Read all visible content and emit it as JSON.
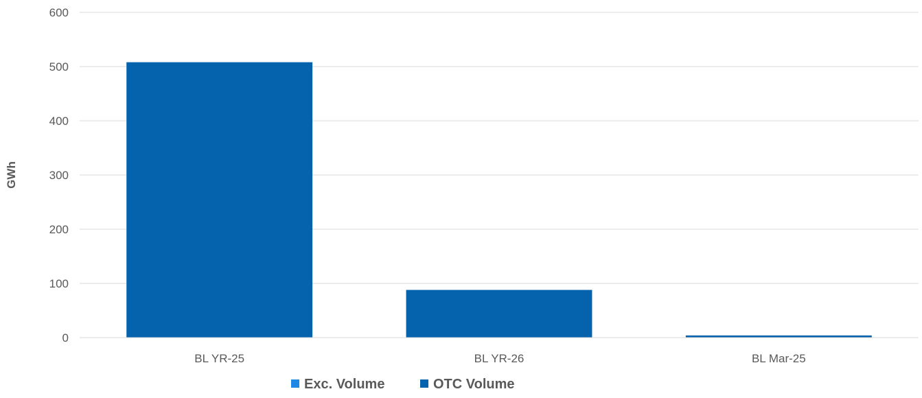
{
  "chart_data": {
    "type": "bar",
    "stacked": true,
    "categories": [
      "BL YR-25",
      "BL YR-26",
      "BL Mar-25"
    ],
    "series": [
      {
        "name": "Exc. Volume",
        "color": "#1e88e5",
        "values": [
          0,
          0,
          0
        ]
      },
      {
        "name": "OTC Volume",
        "color": "#0563ae",
        "values": [
          508,
          88,
          4
        ]
      }
    ],
    "title": "",
    "xlabel": "",
    "ylabel": "GWh",
    "ylim": [
      0,
      600
    ],
    "yticks": [
      0,
      100,
      200,
      300,
      400,
      500,
      600
    ],
    "grid": true,
    "legend_position": "bottom"
  }
}
